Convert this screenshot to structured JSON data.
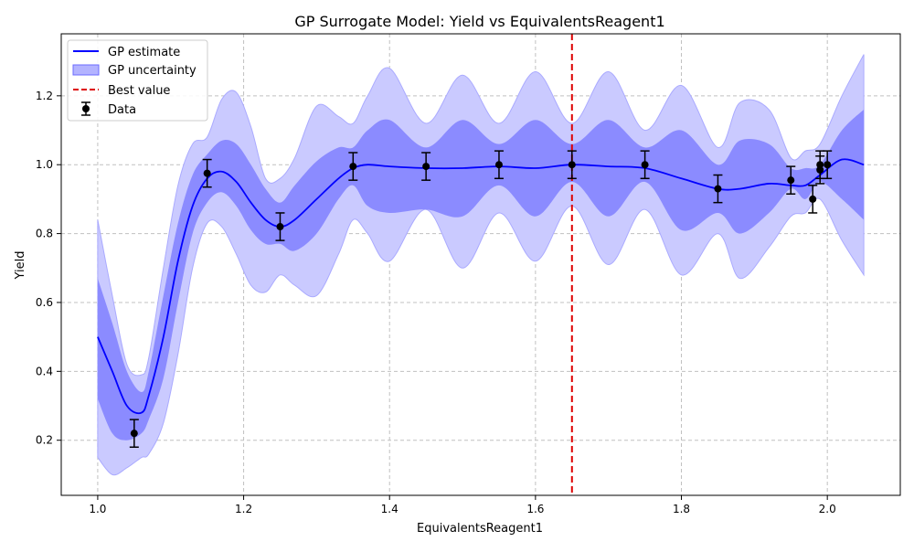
{
  "chart_data": {
    "type": "line",
    "title": "GP Surrogate Model: Yield vs EquivalentsReagent1",
    "xlabel": "EquivalentsReagent1",
    "ylabel": "Yield",
    "xlim": [
      0.95,
      2.1
    ],
    "ylim": [
      0.04,
      1.38
    ],
    "xticks": [
      1.0,
      1.2,
      1.4,
      1.6,
      1.8,
      2.0
    ],
    "xtick_labels": [
      "1.0",
      "1.2",
      "1.4",
      "1.6",
      "1.8",
      "2.0"
    ],
    "yticks": [
      0.2,
      0.4,
      0.6,
      0.8,
      1.0,
      1.2
    ],
    "ytick_labels": [
      "0.2",
      "0.4",
      "0.6",
      "0.8",
      "1.0",
      "1.2"
    ],
    "grid": true,
    "legend_position": "top-left",
    "legend": [
      "GP estimate",
      "GP uncertainty",
      "Best value",
      "Data"
    ],
    "best_value_x": 1.65,
    "gp_estimate": {
      "x": [
        1.0,
        1.02,
        1.04,
        1.06,
        1.07,
        1.09,
        1.11,
        1.13,
        1.15,
        1.17,
        1.19,
        1.21,
        1.23,
        1.25,
        1.27,
        1.3,
        1.33,
        1.35,
        1.37,
        1.4,
        1.45,
        1.5,
        1.55,
        1.6,
        1.65,
        1.7,
        1.75,
        1.8,
        1.85,
        1.88,
        1.92,
        1.95,
        1.97,
        1.99,
        2.02,
        2.05
      ],
      "mean": [
        0.5,
        0.4,
        0.3,
        0.28,
        0.33,
        0.5,
        0.72,
        0.88,
        0.96,
        0.98,
        0.95,
        0.89,
        0.84,
        0.82,
        0.84,
        0.9,
        0.96,
        0.99,
        1.0,
        0.995,
        0.99,
        0.99,
        0.995,
        0.99,
        1.0,
        0.995,
        0.99,
        0.96,
        0.93,
        0.93,
        0.945,
        0.94,
        0.94,
        0.97,
        1.015,
        1.0
      ],
      "inner_lower": [
        0.32,
        0.22,
        0.2,
        0.22,
        0.26,
        0.38,
        0.6,
        0.8,
        0.89,
        0.92,
        0.88,
        0.81,
        0.77,
        0.77,
        0.75,
        0.8,
        0.9,
        0.94,
        0.88,
        0.86,
        0.87,
        0.85,
        0.94,
        0.85,
        0.95,
        0.85,
        0.95,
        0.81,
        0.86,
        0.8,
        0.86,
        0.93,
        0.9,
        0.95,
        0.9,
        0.84
      ],
      "inner_upper": [
        0.67,
        0.54,
        0.4,
        0.34,
        0.4,
        0.62,
        0.83,
        0.97,
        1.03,
        1.07,
        1.06,
        1.0,
        0.93,
        0.89,
        0.94,
        1.01,
        1.05,
        1.05,
        1.1,
        1.13,
        1.05,
        1.13,
        1.06,
        1.13,
        1.06,
        1.13,
        1.05,
        1.1,
        1.0,
        1.07,
        1.06,
        0.99,
        0.99,
        1.0,
        1.1,
        1.16
      ],
      "outer_lower": [
        0.15,
        0.1,
        0.12,
        0.15,
        0.16,
        0.25,
        0.45,
        0.7,
        0.83,
        0.82,
        0.74,
        0.65,
        0.63,
        0.68,
        0.65,
        0.62,
        0.74,
        0.84,
        0.8,
        0.72,
        0.87,
        0.7,
        0.86,
        0.72,
        0.88,
        0.71,
        0.87,
        0.68,
        0.8,
        0.67,
        0.76,
        0.85,
        0.86,
        0.9,
        0.78,
        0.68
      ],
      "outer_upper": [
        0.84,
        0.62,
        0.42,
        0.39,
        0.44,
        0.7,
        0.94,
        1.06,
        1.08,
        1.19,
        1.21,
        1.11,
        0.96,
        0.96,
        1.02,
        1.17,
        1.14,
        1.12,
        1.2,
        1.28,
        1.12,
        1.26,
        1.12,
        1.27,
        1.12,
        1.27,
        1.1,
        1.23,
        1.05,
        1.18,
        1.16,
        1.02,
        1.04,
        1.06,
        1.2,
        1.32
      ]
    },
    "data_points": {
      "x": [
        1.05,
        1.15,
        1.25,
        1.35,
        1.45,
        1.55,
        1.65,
        1.75,
        1.85,
        1.95,
        1.98,
        1.99,
        1.99,
        2.0
      ],
      "y": [
        0.22,
        0.975,
        0.82,
        0.995,
        0.995,
        1.0,
        1.0,
        1.0,
        0.93,
        0.955,
        0.9,
        0.985,
        1.0,
        1.0
      ],
      "err": [
        0.04,
        0.04,
        0.04,
        0.04,
        0.04,
        0.04,
        0.04,
        0.04,
        0.04,
        0.04,
        0.04,
        0.04,
        0.04,
        0.04
      ]
    },
    "colors": {
      "gp_line": "#0000ff",
      "band_inner": "#8b8bff",
      "band_outer": "#cacaff",
      "band_outer_edge": "#aaaaff",
      "best_line": "#dd0000",
      "data": "#000000",
      "grid": "#c0c0c0"
    }
  }
}
